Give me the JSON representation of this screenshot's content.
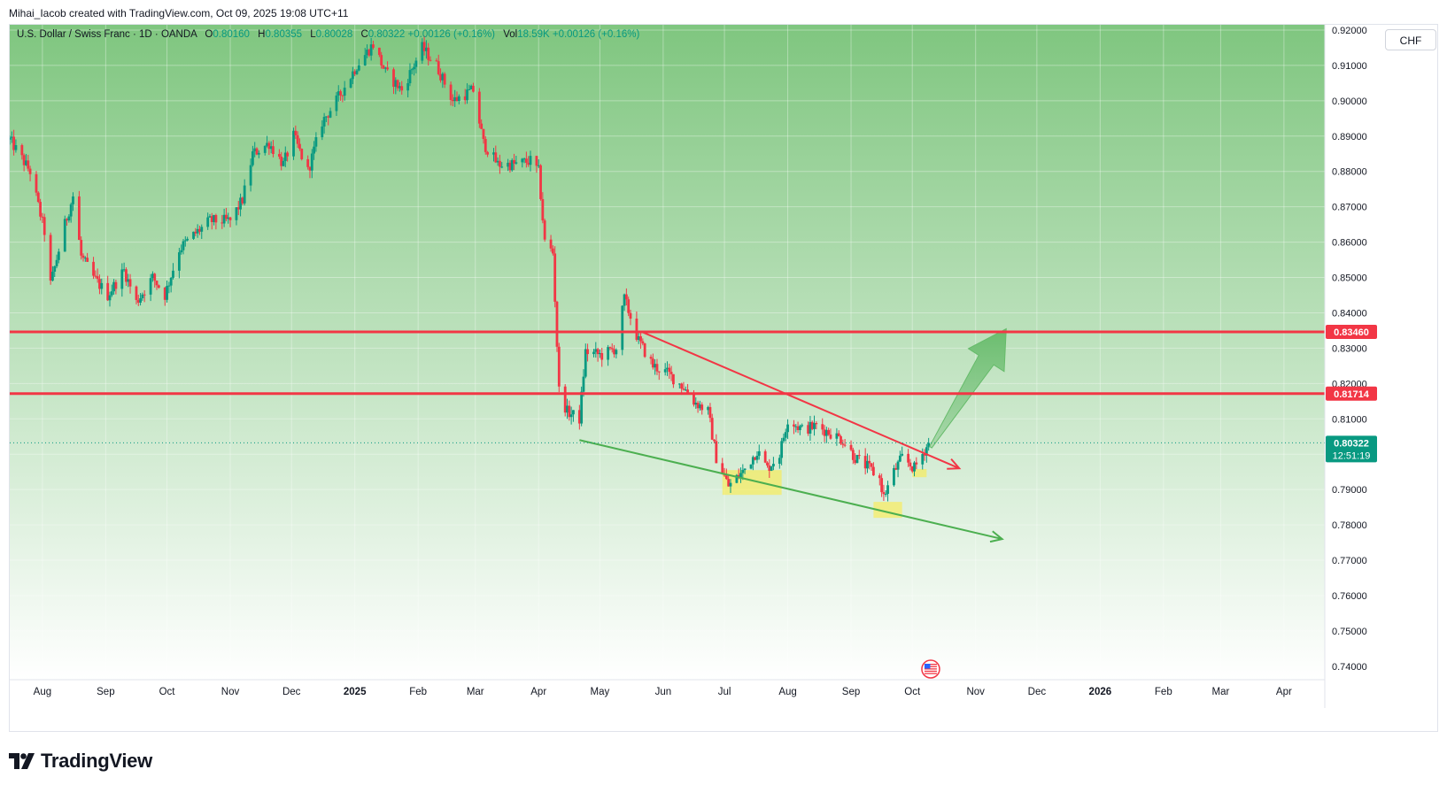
{
  "caption": "Mihai_Iacob created with TradingView.com, Oct 09, 2025 19:08 UTC+11",
  "legend": {
    "symbol": "U.S. Dollar / Swiss Franc · 1D · OANDA",
    "o_label": "O",
    "o": "0.80160",
    "h_label": "H",
    "h": "0.80355",
    "l_label": "L",
    "l": "0.80028",
    "c_label": "C",
    "c": "0.80322",
    "change": "+0.00126 (+0.16%)",
    "vol_label": "Vol",
    "vol": "18.59K",
    "vol_change": "+0.00126 (+0.16%)"
  },
  "currency_button": "CHF",
  "brand": {
    "name": "TradingView",
    "icon": "tradingview-logo-icon"
  },
  "colors": {
    "up": "#089981",
    "down": "#f23645",
    "level_line": "#f23645",
    "bg_top": "#7fc67f",
    "bg_bottom": "#ffffff",
    "price_badge": "#089981",
    "resistance_trend": "#f23645",
    "support_trend": "#4caf50",
    "projection_arrow": "#66bb6a",
    "highlight": "#ffeb3b"
  },
  "chart_data": {
    "type": "candlestick",
    "y_ticks": [
      "0.92000",
      "0.91000",
      "0.90000",
      "0.89000",
      "0.88000",
      "0.87000",
      "0.86000",
      "0.85000",
      "0.84000",
      "0.83000",
      "0.82000",
      "0.81000",
      "0.80000",
      "0.79000",
      "0.78000",
      "0.77000",
      "0.76000",
      "0.75000",
      "0.74000"
    ],
    "y_range": [
      0.7362,
      0.9215
    ],
    "x_labels": [
      {
        "text": "Aug",
        "date": "2024-08-01",
        "bold": false
      },
      {
        "text": "Sep",
        "date": "2024-09-01",
        "bold": false
      },
      {
        "text": "Oct",
        "date": "2024-10-01",
        "bold": false
      },
      {
        "text": "Nov",
        "date": "2024-11-01",
        "bold": false
      },
      {
        "text": "Dec",
        "date": "2024-12-01",
        "bold": false
      },
      {
        "text": "2025",
        "date": "2025-01-01",
        "bold": true
      },
      {
        "text": "Feb",
        "date": "2025-02-01",
        "bold": false
      },
      {
        "text": "Mar",
        "date": "2025-03-01",
        "bold": false
      },
      {
        "text": "Apr",
        "date": "2025-04-01",
        "bold": false
      },
      {
        "text": "May",
        "date": "2025-05-01",
        "bold": false
      },
      {
        "text": "Jun",
        "date": "2025-06-01",
        "bold": false
      },
      {
        "text": "Jul",
        "date": "2025-07-01",
        "bold": false
      },
      {
        "text": "Aug",
        "date": "2025-08-01",
        "bold": false
      },
      {
        "text": "Sep",
        "date": "2025-09-01",
        "bold": false
      },
      {
        "text": "Oct",
        "date": "2025-10-01",
        "bold": false
      },
      {
        "text": "Nov",
        "date": "2025-11-01",
        "bold": false
      },
      {
        "text": "Dec",
        "date": "2025-12-01",
        "bold": false
      },
      {
        "text": "2026",
        "date": "2026-01-01",
        "bold": true
      },
      {
        "text": "Feb",
        "date": "2026-02-01",
        "bold": false
      },
      {
        "text": "Mar",
        "date": "2026-03-01",
        "bold": false
      },
      {
        "text": "Apr",
        "date": "2026-04-01",
        "bold": false
      }
    ],
    "x_range": [
      "2024-07-16",
      "2026-04-21"
    ],
    "price_path": [
      [
        "2024-07-16",
        0.889
      ],
      [
        "2024-07-26",
        0.88
      ],
      [
        "2024-08-02",
        0.863
      ],
      [
        "2024-08-05",
        0.848
      ],
      [
        "2024-08-12",
        0.865
      ],
      [
        "2024-08-16",
        0.873
      ],
      [
        "2024-08-20",
        0.856
      ],
      [
        "2024-08-26",
        0.85
      ],
      [
        "2024-09-02",
        0.845
      ],
      [
        "2024-09-10",
        0.852
      ],
      [
        "2024-09-16",
        0.843
      ],
      [
        "2024-09-24",
        0.85
      ],
      [
        "2024-09-30",
        0.845
      ],
      [
        "2024-10-07",
        0.858
      ],
      [
        "2024-10-14",
        0.862
      ],
      [
        "2024-10-22",
        0.866
      ],
      [
        "2024-11-01",
        0.866
      ],
      [
        "2024-11-07",
        0.872
      ],
      [
        "2024-11-12",
        0.885
      ],
      [
        "2024-11-20",
        0.888
      ],
      [
        "2024-11-27",
        0.882
      ],
      [
        "2024-12-02",
        0.89
      ],
      [
        "2024-12-09",
        0.88
      ],
      [
        "2024-12-16",
        0.894
      ],
      [
        "2024-12-23",
        0.9
      ],
      [
        "2025-01-02",
        0.91
      ],
      [
        "2025-01-10",
        0.916
      ],
      [
        "2025-01-16",
        0.908
      ],
      [
        "2025-01-24",
        0.903
      ],
      [
        "2025-02-03",
        0.915
      ],
      [
        "2025-02-10",
        0.91
      ],
      [
        "2025-02-18",
        0.9
      ],
      [
        "2025-02-28",
        0.903
      ],
      [
        "2025-03-05",
        0.888
      ],
      [
        "2025-03-12",
        0.882
      ],
      [
        "2025-03-20",
        0.882
      ],
      [
        "2025-03-28",
        0.883
      ],
      [
        "2025-04-01",
        0.88
      ],
      [
        "2025-04-04",
        0.86
      ],
      [
        "2025-04-08",
        0.857
      ],
      [
        "2025-04-11",
        0.818
      ],
      [
        "2025-04-15",
        0.812
      ],
      [
        "2025-04-21",
        0.81
      ],
      [
        "2025-04-24",
        0.829
      ],
      [
        "2025-05-02",
        0.828
      ],
      [
        "2025-05-09",
        0.83
      ],
      [
        "2025-05-13",
        0.844
      ],
      [
        "2025-05-20",
        0.832
      ],
      [
        "2025-05-27",
        0.825
      ],
      [
        "2025-06-03",
        0.823
      ],
      [
        "2025-06-11",
        0.819
      ],
      [
        "2025-06-16",
        0.815
      ],
      [
        "2025-06-23",
        0.812
      ],
      [
        "2025-06-27",
        0.799
      ],
      [
        "2025-07-03",
        0.791
      ],
      [
        "2025-07-10",
        0.795
      ],
      [
        "2025-07-17",
        0.801
      ],
      [
        "2025-07-22",
        0.796
      ],
      [
        "2025-07-28",
        0.8
      ],
      [
        "2025-08-01",
        0.81
      ],
      [
        "2025-08-08",
        0.807
      ],
      [
        "2025-08-15",
        0.808
      ],
      [
        "2025-08-22",
        0.806
      ],
      [
        "2025-08-28",
        0.804
      ],
      [
        "2025-09-03",
        0.799
      ],
      [
        "2025-09-10",
        0.796
      ],
      [
        "2025-09-15",
        0.793
      ],
      [
        "2025-09-17",
        0.788
      ],
      [
        "2025-09-22",
        0.795
      ],
      [
        "2025-09-26",
        0.799
      ],
      [
        "2025-10-02",
        0.796
      ],
      [
        "2025-10-09",
        0.8032
      ]
    ],
    "horizontal_levels": [
      {
        "price": 0.8346,
        "label": "0.83460"
      },
      {
        "price": 0.81714,
        "label": "0.81714"
      }
    ],
    "last_price": {
      "price": 0.80322,
      "label": "0.80322",
      "countdown": "12:51:19"
    },
    "resistance_trendline": {
      "from": [
        "2025-05-22",
        0.8345
      ],
      "to": [
        "2025-10-24",
        0.796
      ]
    },
    "support_trendline": {
      "from": [
        "2025-04-21",
        0.804
      ],
      "to": [
        "2025-11-14",
        0.776
      ]
    },
    "projection_arrow": {
      "from": [
        "2025-10-10",
        0.802
      ],
      "to": [
        "2025-11-16",
        0.8355
      ]
    },
    "highlight_zones": [
      {
        "from": [
          "2025-06-30",
          0.7955
        ],
        "to": [
          "2025-07-29",
          0.7885
        ]
      },
      {
        "from": [
          "2025-09-12",
          0.7865
        ],
        "to": [
          "2025-09-26",
          0.782
        ]
      },
      {
        "from": [
          "2025-10-01",
          0.7958
        ],
        "to": [
          "2025-10-08",
          0.7935
        ]
      }
    ],
    "event_marker": {
      "date": "2025-10-10",
      "icon": "us-flag-event-icon"
    }
  }
}
